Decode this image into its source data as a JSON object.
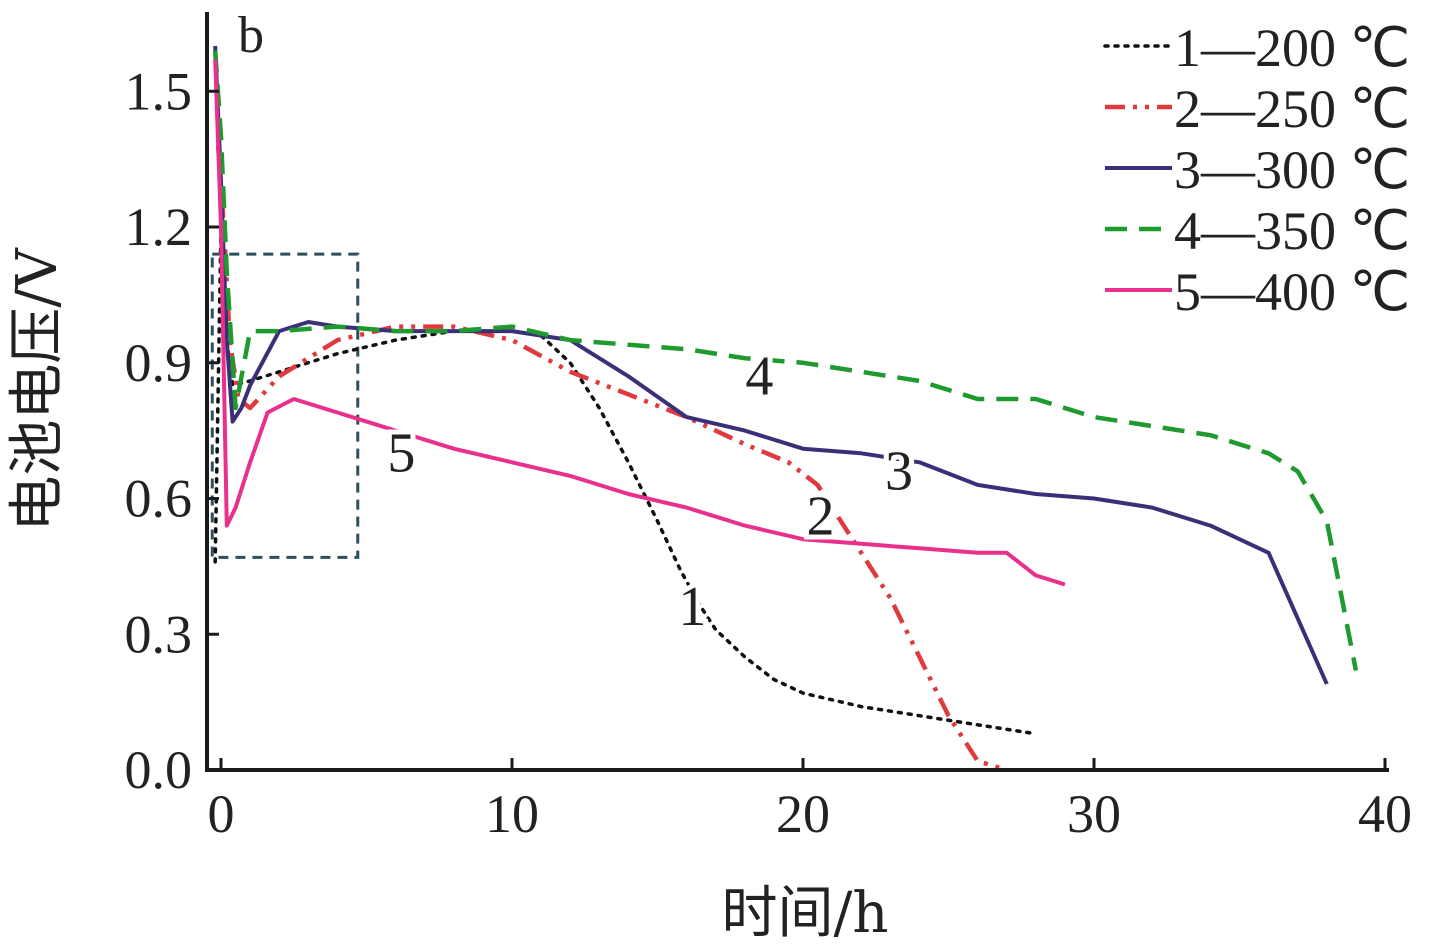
{
  "chart_data": {
    "type": "line",
    "panel_label": "b",
    "xlabel": "时间/h",
    "ylabel": "电池电压/V",
    "xlim": [
      0,
      40
    ],
    "ylim": [
      0,
      1.6
    ],
    "xticks": [
      0,
      10,
      20,
      30,
      40
    ],
    "xtick_labels": [
      "0",
      "10",
      "20",
      "30",
      "40"
    ],
    "yticks": [
      0.0,
      0.3,
      0.6,
      0.9,
      1.2,
      1.5
    ],
    "ytick_labels": [
      "0.0",
      "0.3",
      "0.6",
      "0.9",
      "1.2",
      "1.5"
    ],
    "grid": false,
    "legend_position": "top-right",
    "zoom_box": {
      "x": [
        -0.3,
        4.7
      ],
      "y": [
        0.47,
        1.14
      ]
    },
    "series": [
      {
        "name": "1—200 ℃",
        "curve_label": "1",
        "color": "#111111",
        "style": "dotted",
        "label_at": [
          16.2,
          0.36
        ],
        "x": [
          -0.2,
          0.0,
          0.1,
          0.2,
          0.4,
          1,
          2,
          4,
          6,
          8,
          10,
          11,
          12,
          13,
          14,
          15,
          15.8,
          16.5,
          17,
          18,
          19,
          20,
          22,
          24,
          26,
          28
        ],
        "y": [
          0.46,
          1.2,
          1.1,
          0.95,
          0.85,
          0.86,
          0.88,
          0.92,
          0.95,
          0.97,
          0.97,
          0.96,
          0.9,
          0.8,
          0.68,
          0.55,
          0.44,
          0.36,
          0.31,
          0.25,
          0.2,
          0.17,
          0.14,
          0.12,
          0.1,
          0.08
        ]
      },
      {
        "name": "2—250 ℃",
        "curve_label": "2",
        "color": "#e03a3e",
        "style": "dash-dot-dot",
        "label_at": [
          20.6,
          0.56
        ],
        "x": [
          -0.1,
          0.1,
          0.3,
          0.6,
          1,
          2,
          4,
          6,
          8,
          10,
          12,
          14,
          16,
          18,
          19.5,
          20.5,
          21.3,
          22,
          23,
          24,
          25,
          26,
          27
        ],
        "y": [
          1.38,
          1.2,
          0.95,
          0.82,
          0.8,
          0.87,
          0.95,
          0.98,
          0.98,
          0.95,
          0.88,
          0.83,
          0.78,
          0.72,
          0.68,
          0.63,
          0.55,
          0.48,
          0.38,
          0.25,
          0.12,
          0.02,
          0.0
        ]
      },
      {
        "name": "3—300 ℃",
        "curve_label": "3",
        "color": "#3b3078",
        "style": "solid",
        "label_at": [
          23.3,
          0.66
        ],
        "x": [
          -0.2,
          0.0,
          0.2,
          0.4,
          0.7,
          1,
          2,
          3,
          4,
          6,
          8,
          10,
          12,
          14,
          16,
          18,
          20,
          22,
          24,
          26,
          28,
          30,
          32,
          34,
          36,
          38
        ],
        "y": [
          1.6,
          1.3,
          0.95,
          0.77,
          0.8,
          0.85,
          0.97,
          0.99,
          0.98,
          0.97,
          0.97,
          0.97,
          0.95,
          0.87,
          0.78,
          0.75,
          0.71,
          0.7,
          0.68,
          0.63,
          0.61,
          0.6,
          0.58,
          0.54,
          0.48,
          0.19
        ]
      },
      {
        "name": "4—350 ℃",
        "curve_label": "4",
        "color": "#1f9a2e",
        "style": "dashed",
        "label_at": [
          18.5,
          0.87
        ],
        "x": [
          -0.2,
          0.0,
          0.2,
          0.5,
          1,
          2,
          4,
          6,
          8,
          10,
          12,
          14,
          16,
          18,
          20,
          22,
          24,
          26,
          28,
          30,
          32,
          34,
          36,
          37,
          38,
          39
        ],
        "y": [
          1.59,
          1.4,
          1.1,
          0.8,
          0.97,
          0.97,
          0.98,
          0.97,
          0.97,
          0.98,
          0.95,
          0.94,
          0.93,
          0.91,
          0.9,
          0.88,
          0.86,
          0.82,
          0.82,
          0.78,
          0.76,
          0.74,
          0.7,
          0.66,
          0.55,
          0.22
        ]
      },
      {
        "name": "5—400 ℃",
        "curve_label": "5",
        "color": "#e8308c",
        "style": "solid",
        "label_at": [
          6.2,
          0.7
        ],
        "x": [
          -0.2,
          0.0,
          0.2,
          0.5,
          1,
          1.6,
          2.5,
          3,
          4,
          6,
          8,
          10,
          12,
          14,
          16,
          18,
          20,
          22,
          24,
          26,
          27,
          28,
          29
        ],
        "y": [
          1.57,
          1.2,
          0.54,
          0.58,
          0.68,
          0.79,
          0.82,
          0.81,
          0.79,
          0.75,
          0.71,
          0.68,
          0.65,
          0.61,
          0.58,
          0.54,
          0.51,
          0.5,
          0.49,
          0.48,
          0.48,
          0.43,
          0.41
        ]
      }
    ]
  }
}
